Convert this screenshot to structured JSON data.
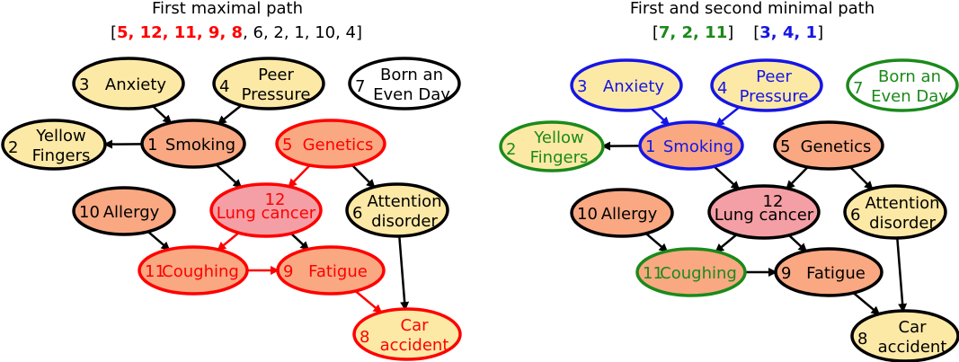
{
  "colors": {
    "peach": "#f9a882",
    "light_yellow": "#fde9a6",
    "pink": "#f49fa5",
    "black": "#000000",
    "red": "#ff0000",
    "green": "#1a8a1a",
    "blue": "#1515e6"
  },
  "left_panel": {
    "title": "First maximal path",
    "sequence_open": "[",
    "sequence_highlight": "5, 12, 11, 9, 8",
    "sequence_rest": ", 6, 2, 1, 10, 4",
    "sequence_close": "]",
    "highlight_color": "#ff0000"
  },
  "right_panel": {
    "title": "First and second minimal path",
    "seq1_open": "[",
    "seq1_body": "7, 2, 11",
    "seq1_close": "]",
    "seq1_color": "#1a8a1a",
    "seq2_open": "[",
    "seq2_body": "3, 4, 1",
    "seq2_close": "]",
    "seq2_color": "#1515e6"
  },
  "nodes": [
    {
      "id": "3",
      "num": "3",
      "lines": [
        "Anxiety"
      ]
    },
    {
      "id": "4",
      "num": "4",
      "lines": [
        "Peer",
        "Pressure"
      ]
    },
    {
      "id": "7",
      "num": "7",
      "lines": [
        "Born an",
        "Even Day"
      ]
    },
    {
      "id": "2",
      "num": "2",
      "lines": [
        "Yellow",
        "Fingers"
      ]
    },
    {
      "id": "1",
      "num": "1",
      "lines": [
        "Smoking"
      ]
    },
    {
      "id": "5",
      "num": "5",
      "lines": [
        "Genetics"
      ]
    },
    {
      "id": "12",
      "num": "12",
      "lines": [
        "Lung cancer"
      ]
    },
    {
      "id": "6",
      "num": "6",
      "lines": [
        "Attention",
        "disorder"
      ]
    },
    {
      "id": "10",
      "num": "10",
      "lines": [
        "Allergy"
      ]
    },
    {
      "id": "11",
      "num": "11",
      "lines": [
        "Coughing"
      ]
    },
    {
      "id": "9",
      "num": "9",
      "lines": [
        "Fatigue"
      ]
    },
    {
      "id": "8",
      "num": "8",
      "lines": [
        "Car",
        "accident"
      ]
    }
  ],
  "edges": [
    [
      "3",
      "1"
    ],
    [
      "4",
      "1"
    ],
    [
      "1",
      "2"
    ],
    [
      "1",
      "12"
    ],
    [
      "5",
      "12"
    ],
    [
      "5",
      "6"
    ],
    [
      "12",
      "11"
    ],
    [
      "12",
      "9"
    ],
    [
      "10",
      "11"
    ],
    [
      "11",
      "9"
    ],
    [
      "9",
      "8"
    ],
    [
      "6",
      "8"
    ]
  ],
  "left_styles": {
    "3": {
      "fill": "light_yellow",
      "stroke": "black",
      "text": "black"
    },
    "4": {
      "fill": "light_yellow",
      "stroke": "black",
      "text": "black"
    },
    "7": {
      "fill": "white",
      "stroke": "black",
      "text": "black"
    },
    "2": {
      "fill": "light_yellow",
      "stroke": "black",
      "text": "black"
    },
    "1": {
      "fill": "peach",
      "stroke": "black",
      "text": "black"
    },
    "5": {
      "fill": "peach",
      "stroke": "red",
      "text": "red"
    },
    "12": {
      "fill": "pink",
      "stroke": "red",
      "text": "red"
    },
    "6": {
      "fill": "light_yellow",
      "stroke": "black",
      "text": "black"
    },
    "10": {
      "fill": "peach",
      "stroke": "black",
      "text": "black"
    },
    "11": {
      "fill": "peach",
      "stroke": "red",
      "text": "red"
    },
    "9": {
      "fill": "peach",
      "stroke": "red",
      "text": "red"
    },
    "8": {
      "fill": "light_yellow",
      "stroke": "red",
      "text": "red"
    }
  },
  "left_edge_colors": {
    "5-12": "red",
    "12-11": "red",
    "11-9": "red",
    "9-8": "red"
  },
  "right_styles": {
    "3": {
      "fill": "light_yellow",
      "stroke": "blue",
      "text": "blue"
    },
    "4": {
      "fill": "light_yellow",
      "stroke": "blue",
      "text": "blue"
    },
    "7": {
      "fill": "white",
      "stroke": "green",
      "text": "green"
    },
    "2": {
      "fill": "light_yellow",
      "stroke": "green",
      "text": "green"
    },
    "1": {
      "fill": "peach",
      "stroke": "blue",
      "text": "blue"
    },
    "5": {
      "fill": "peach",
      "stroke": "black",
      "text": "black"
    },
    "12": {
      "fill": "pink",
      "stroke": "black",
      "text": "black"
    },
    "6": {
      "fill": "light_yellow",
      "stroke": "black",
      "text": "black"
    },
    "10": {
      "fill": "peach",
      "stroke": "black",
      "text": "black"
    },
    "11": {
      "fill": "peach",
      "stroke": "green",
      "text": "green"
    },
    "9": {
      "fill": "peach",
      "stroke": "black",
      "text": "black"
    },
    "8": {
      "fill": "light_yellow",
      "stroke": "black",
      "text": "black"
    }
  },
  "right_edge_colors": {
    "3-1": "blue",
    "4-1": "blue"
  }
}
